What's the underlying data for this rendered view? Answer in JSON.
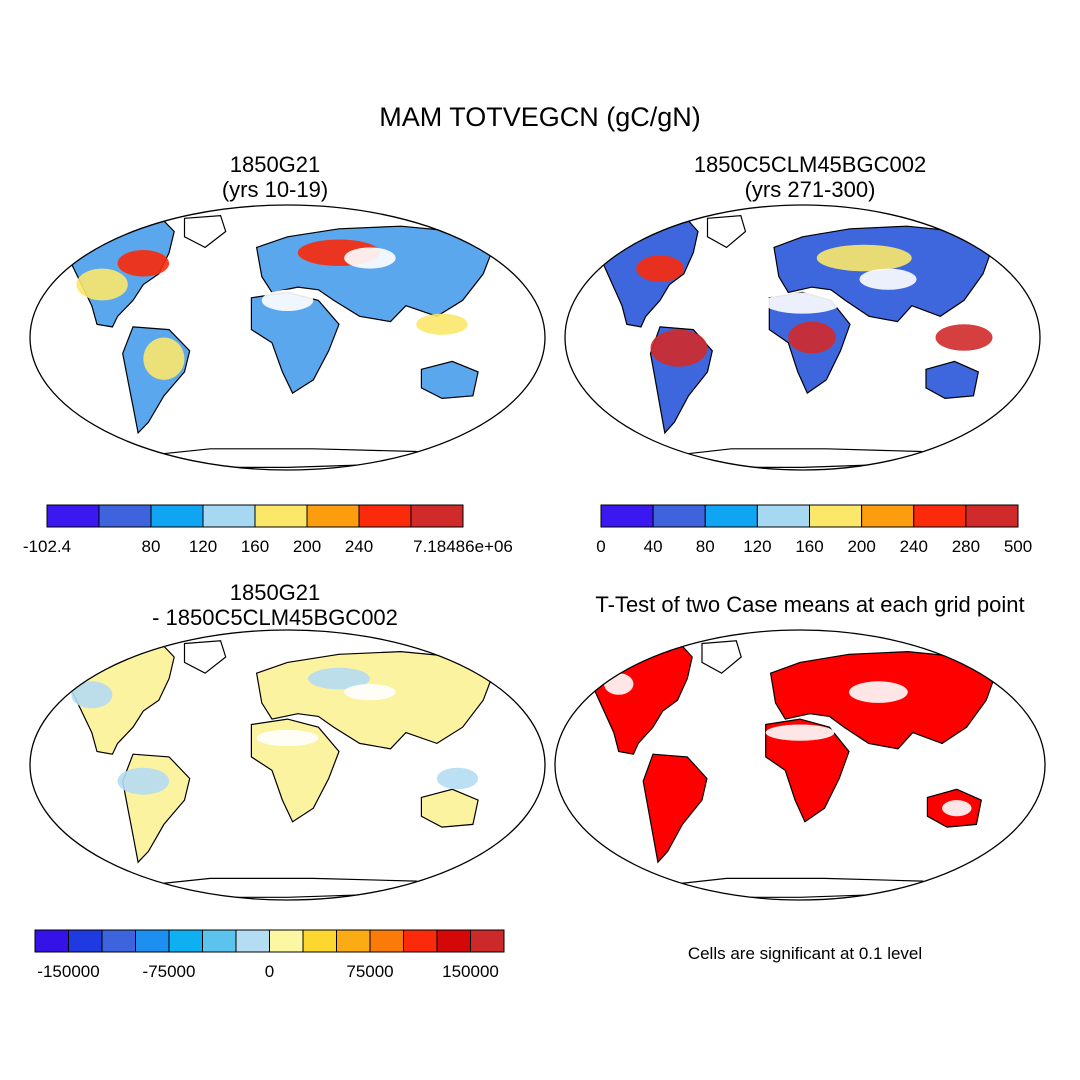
{
  "title": "MAM TOTVEGCN (gC/gN)",
  "panels": [
    {
      "title_line1": "1850G21",
      "title_line2": "(yrs 10-19)",
      "colorbar": {
        "colors": [
          "#3b18f0",
          "#3d64dc",
          "#0fa5f2",
          "#a6d8f2",
          "#fbe86a",
          "#fb9d0e",
          "#fa2a0a",
          "#d12a2a"
        ],
        "labels": [
          "-102.4",
          "80",
          "120",
          "160",
          "200",
          "240",
          "7.18486e+06"
        ]
      }
    },
    {
      "title_line1": "1850C5CLM45BGC002",
      "title_line2": "(yrs 271-300)",
      "colorbar": {
        "colors": [
          "#3b18f0",
          "#3d64dc",
          "#0fa5f2",
          "#a6d8f2",
          "#fbe86a",
          "#fb9d0e",
          "#fa2a0a",
          "#d12a2a"
        ],
        "labels": [
          "0",
          "40",
          "80",
          "120",
          "160",
          "200",
          "240",
          "280",
          "500"
        ]
      }
    },
    {
      "title_line1": "1850G21",
      "title_line2": "- 1850C5CLM45BGC002",
      "colorbar": {
        "colors": [
          "#3512e8",
          "#1e3ae0",
          "#3d64dc",
          "#1d8ff0",
          "#0fb0f2",
          "#5cc3ef",
          "#b4dcf2",
          "#fcf7a2",
          "#fdd630",
          "#fbac14",
          "#fa7a0a",
          "#fa2a0a",
          "#d40808",
          "#cc2a2a"
        ],
        "labels": [
          "-150000",
          "-75000",
          "0",
          "75000",
          "150000"
        ]
      }
    },
    {
      "title": "T-Test of two Case means at each grid point",
      "note": "Cells are significant at 0.1 level"
    }
  ],
  "colors": {
    "land_p1": "#5aa7ee",
    "land_p2": "#3f67dd",
    "land_p3": "#fcf3a0",
    "land_p4": "#ff0000"
  }
}
